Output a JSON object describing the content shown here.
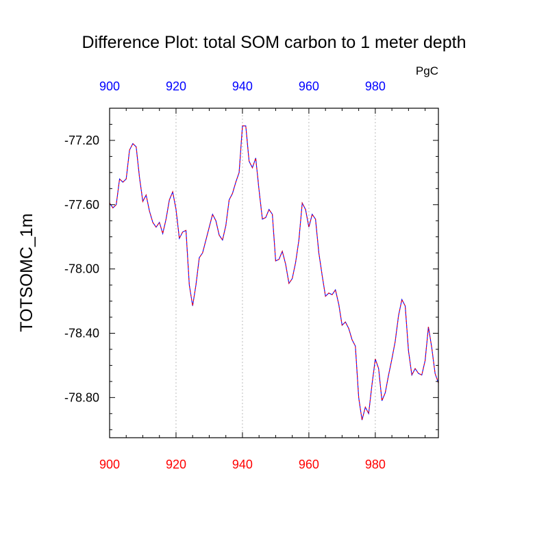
{
  "chart_data": {
    "type": "line",
    "title": "Difference Plot: total SOM carbon to 1 meter depth",
    "units": "PgC",
    "xlabel": "",
    "ylabel": "TOTSOMC_1m",
    "xlim": [
      900,
      999
    ],
    "ylim": [
      -79.05,
      -77.0
    ],
    "x_ticks_bottom": [
      900,
      920,
      940,
      960,
      980
    ],
    "x_tick_labels_bottom": [
      "900",
      "920",
      "940",
      "960",
      "980"
    ],
    "x_ticks_top": [
      900,
      920,
      940,
      960,
      980
    ],
    "x_tick_labels_top": [
      "900",
      "920",
      "940",
      "960",
      "980"
    ],
    "y_ticks": [
      -77.2,
      -77.6,
      -78.0,
      -78.4,
      -78.8
    ],
    "y_tick_labels": [
      "-77.20",
      "-77.60",
      "-78.00",
      "-78.40",
      "-78.80"
    ],
    "grid": "vertical dotted at major x ticks",
    "colors": {
      "bottom_axis_labels": "#ff0000",
      "top_axis_labels": "#0000ff",
      "line_primary": "#0000ff",
      "line_secondary": "#ff0000",
      "grid": "#bbbbbb"
    },
    "series": [
      {
        "line_style": "dashed overlay (blue/red)",
        "x": [
          900,
          901,
          902,
          903,
          904,
          905,
          906,
          907,
          908,
          909,
          910,
          911,
          912,
          913,
          914,
          915,
          916,
          917,
          918,
          919,
          920,
          921,
          922,
          923,
          924,
          925,
          926,
          927,
          928,
          929,
          930,
          931,
          932,
          933,
          934,
          935,
          936,
          937,
          938,
          939,
          940,
          941,
          942,
          943,
          944,
          945,
          946,
          947,
          948,
          949,
          950,
          951,
          952,
          953,
          954,
          955,
          956,
          957,
          958,
          959,
          960,
          961,
          962,
          963,
          964,
          965,
          966,
          967,
          968,
          969,
          970,
          971,
          972,
          973,
          974,
          975,
          976,
          977,
          978,
          979,
          980,
          981,
          982,
          983,
          984,
          985,
          986,
          987,
          988,
          989,
          990,
          991,
          992,
          993,
          994,
          995,
          996,
          997,
          998,
          999
        ],
        "values": [
          -77.59,
          -77.62,
          -77.6,
          -77.44,
          -77.46,
          -77.44,
          -77.26,
          -77.22,
          -77.24,
          -77.43,
          -77.58,
          -77.54,
          -77.64,
          -77.71,
          -77.74,
          -77.71,
          -77.78,
          -77.69,
          -77.57,
          -77.52,
          -77.63,
          -77.81,
          -77.77,
          -77.76,
          -78.1,
          -78.23,
          -78.1,
          -77.93,
          -77.9,
          -77.82,
          -77.74,
          -77.66,
          -77.7,
          -77.79,
          -77.82,
          -77.73,
          -77.57,
          -77.53,
          -77.46,
          -77.4,
          -77.11,
          -77.11,
          -77.33,
          -77.37,
          -77.31,
          -77.51,
          -77.69,
          -77.68,
          -77.63,
          -77.66,
          -77.95,
          -77.94,
          -77.89,
          -77.97,
          -78.09,
          -78.06,
          -77.96,
          -77.82,
          -77.59,
          -77.63,
          -77.74,
          -77.66,
          -77.69,
          -77.9,
          -78.04,
          -78.17,
          -78.15,
          -78.16,
          -78.13,
          -78.22,
          -78.35,
          -78.33,
          -78.37,
          -78.44,
          -78.48,
          -78.8,
          -78.94,
          -78.86,
          -78.9,
          -78.72,
          -78.56,
          -78.62,
          -78.82,
          -78.77,
          -78.66,
          -78.56,
          -78.45,
          -78.29,
          -78.19,
          -78.23,
          -78.51,
          -78.66,
          -78.62,
          -78.65,
          -78.66,
          -78.57,
          -78.36,
          -78.49,
          -78.65,
          -78.71
        ]
      }
    ]
  }
}
